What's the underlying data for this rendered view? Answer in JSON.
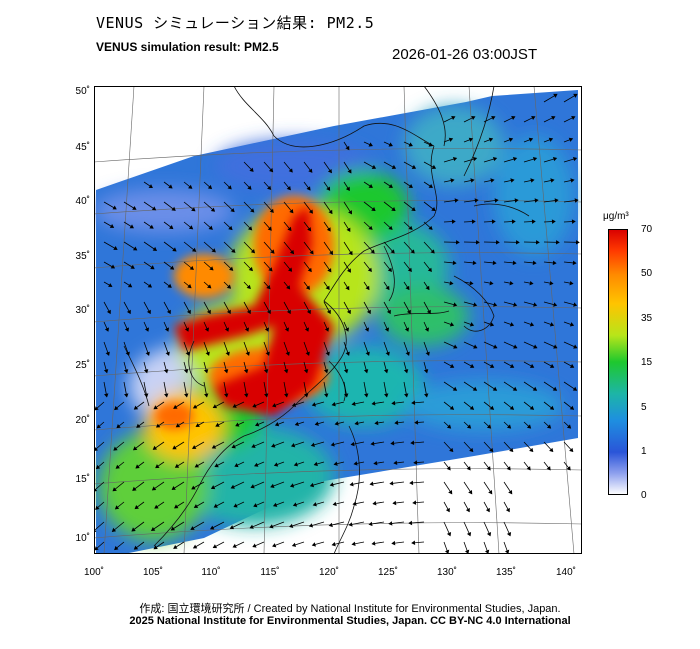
{
  "header": {
    "title_ja": "VENUS シミュレーション結果: PM2.5",
    "title_en": "VENUS simulation result: PM2.5",
    "timestamp": "2026-01-26 03:00JST"
  },
  "map": {
    "lat_labels": [
      "50˚",
      "45˚",
      "40˚",
      "35˚",
      "30˚",
      "25˚",
      "20˚",
      "15˚",
      "10˚"
    ],
    "lon_labels": [
      "100˚",
      "105˚",
      "110˚",
      "115˚",
      "120˚",
      "125˚",
      "130˚",
      "135˚",
      "140˚"
    ],
    "lat_range": [
      9,
      51
    ],
    "lon_range": [
      100,
      141
    ]
  },
  "colorbar": {
    "unit": "μg/m³",
    "ticks": [
      "70",
      "50",
      "35",
      "15",
      "5",
      "1",
      "0"
    ],
    "colors": [
      "#d90000",
      "#ff6a00",
      "#ffc400",
      "#b7e51a",
      "#1ec82e",
      "#1db5a7",
      "#1e8fe0",
      "#2a55d8",
      "#6a7ee8",
      "#c8d2f5",
      "#ffffff"
    ]
  },
  "footer": {
    "credit_line1": "作成: 国立環境研究所 / Created by National Institute for Environmental Studies, Japan.",
    "credit_line2": "2025 National Institute for Environmental Studies, Japan. CC BY-NC 4.0 International"
  }
}
